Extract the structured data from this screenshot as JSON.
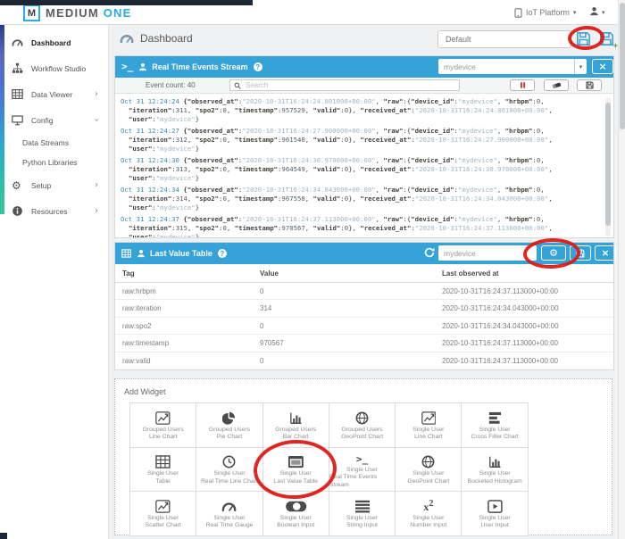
{
  "topbar": {
    "logo_m": "M",
    "logo_part1": "MEDIUM",
    "logo_part2": "ONE",
    "platform": "IoT Platform"
  },
  "sidebar": {
    "items": [
      {
        "label": "Dashboard",
        "icon": "speedometer",
        "active": true
      },
      {
        "label": "Workflow Studio",
        "icon": "sitemap"
      },
      {
        "label": "Data Viewer",
        "icon": "table",
        "chevron": "right"
      },
      {
        "label": "Config",
        "icon": "desktop",
        "chevron": "down"
      },
      {
        "label": "Data Streams",
        "sub": true
      },
      {
        "label": "Python Libraries",
        "sub": true
      },
      {
        "label": "Setup",
        "icon": "gears",
        "chevron": "right"
      },
      {
        "label": "Resources",
        "icon": "info",
        "chevron": "right"
      }
    ]
  },
  "titlebar": {
    "title": "Dashboard",
    "dashboard_name": "Default"
  },
  "events_widget": {
    "title": "Real Time Events Stream",
    "device": "mydevice",
    "count_label": "Event count: 40",
    "search_placeholder": "Search",
    "constants": {
      "device_id": "mydevice",
      "hrbpm": "0",
      "spo2": "0",
      "valid": "0",
      "user": "mydevice"
    },
    "entries": [
      {
        "time": "Oct 31 12:24:24",
        "observed": "2020-10-31T16:24:24.801000+00:00",
        "iteration": "311",
        "timestamp": "957529",
        "received": "2020-10-31T16:24:24.801000+00:00"
      },
      {
        "time": "Oct 31 12:24:27",
        "observed": "2020-10-31T16:24:27.900000+00:00",
        "iteration": "312",
        "timestamp": "961540",
        "received": "2020-10-31T16:24:27.900000+00:00"
      },
      {
        "time": "Oct 31 12:24:30",
        "observed": "2020-10-31T16:24:30.970000+00:00",
        "iteration": "313",
        "timestamp": "964549",
        "received": "2020-10-31T16:24:30.970000+00:00"
      },
      {
        "time": "Oct 31 12:24:34",
        "observed": "2020-10-31T16:24:34.043000+00:00",
        "iteration": "314",
        "timestamp": "967558",
        "received": "2020-10-31T16:24:34.043000+00:00"
      },
      {
        "time": "Oct 31 12:24:37",
        "observed": "2020-10-31T16:24:37.113000+00:00",
        "iteration": "315",
        "timestamp": "970567",
        "received": "2020-10-31T16:24:37.113000+00:00"
      }
    ]
  },
  "table_widget": {
    "title": "Last Value Table",
    "device": "mydevice",
    "columns": [
      "Tag",
      "Value",
      "Last observed at"
    ],
    "rows": [
      [
        "raw:hrbpm",
        "0",
        "2020-10-31T16:24:37.113000+00:00"
      ],
      [
        "raw:iteration",
        "314",
        "2020-10-31T16:24:34.043000+00:00"
      ],
      [
        "raw:spo2",
        "0",
        "2020-10-31T16:24:34.043000+00:00"
      ],
      [
        "raw:timestamp",
        "970567",
        "2020-10-31T16:24:37.113000+00:00"
      ],
      [
        "raw:valid",
        "0",
        "2020-10-31T16:24:37.113000+00:00"
      ]
    ]
  },
  "add_widget": {
    "title": "Add Widget",
    "cells": [
      {
        "line1": "Grouped Users",
        "line2": "Line Chart",
        "icon": "line-chart"
      },
      {
        "line1": "Grouped Users",
        "line2": "Pie Chart",
        "icon": "pie-chart"
      },
      {
        "line1": "Grouped Users",
        "line2": "Bar Chart",
        "icon": "bar-chart"
      },
      {
        "line1": "Grouped Users",
        "line2": "GeoPoint Chart",
        "icon": "globe"
      },
      {
        "line1": "Single User",
        "line2": "Line Chart",
        "icon": "line-chart"
      },
      {
        "line1": "Single User",
        "line2": "Cross Filter Chart",
        "icon": "cross-filter"
      },
      {
        "line1": "Single User",
        "line2": "Table",
        "icon": "table-grid"
      },
      {
        "line1": "Single User",
        "line2": "Real Time Line Chart",
        "icon": "clock"
      },
      {
        "line1": "Single User",
        "line2": "Last Value Table",
        "icon": "window-table",
        "circled": true
      },
      {
        "line1": "Single User",
        "line2": "Real Time Events Stream",
        "icon": "terminal"
      },
      {
        "line1": "Single User",
        "line2": "GeoPoint Chart",
        "icon": "globe"
      },
      {
        "line1": "Single User",
        "line2": "Bucketed Histogram",
        "icon": "bar-chart"
      },
      {
        "line1": "Single User",
        "line2": "Scatter Chart",
        "icon": "line-chart"
      },
      {
        "line1": "Single User",
        "line2": "Real Time Gauge",
        "icon": "speedometer"
      },
      {
        "line1": "Single User",
        "line2": "Boolean Input",
        "icon": "toggle"
      },
      {
        "line1": "Single User",
        "line2": "String Input",
        "icon": "lines"
      },
      {
        "line1": "Single User",
        "line2": "Number Input",
        "icon": "x-squared"
      },
      {
        "line1": "Single User",
        "line2": "User Input",
        "icon": "play-square"
      }
    ]
  },
  "colors": {
    "header_blue": "#36a3d8",
    "accent_blue": "#29abe2",
    "annotation_red": "#de150f"
  }
}
